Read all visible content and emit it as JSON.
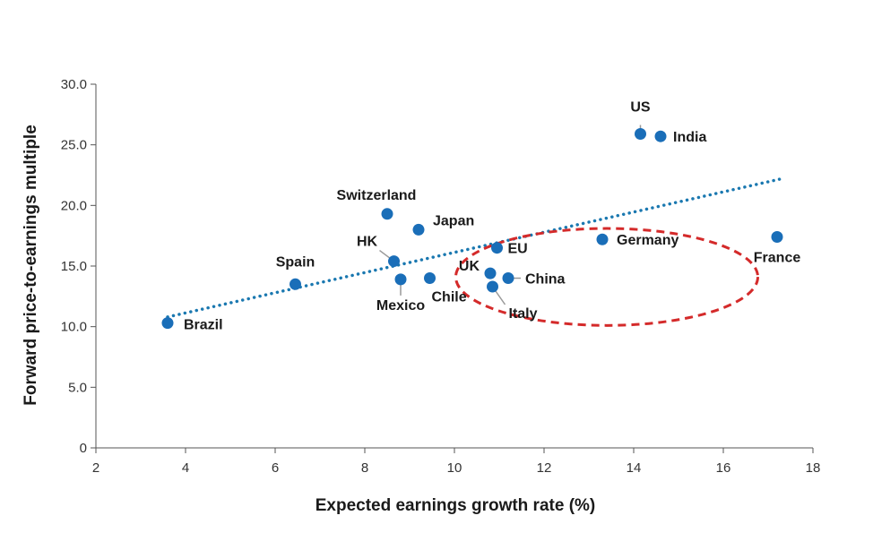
{
  "chart_data": {
    "type": "scatter",
    "title": "",
    "xlabel": "Expected earnings growth rate (%)",
    "ylabel": "Forward price-to-earnings multiple",
    "xlim": [
      2,
      18
    ],
    "ylim": [
      0,
      30
    ],
    "x_ticks": [
      "2",
      "4",
      "6",
      "8",
      "10",
      "12",
      "14",
      "16",
      "18"
    ],
    "y_ticks": [
      "0",
      "5.0",
      "10.0",
      "15.0",
      "20.0",
      "25.0",
      "30.0"
    ],
    "grid": false,
    "points": [
      {
        "label": "Brazil",
        "x": 3.6,
        "y": 10.3
      },
      {
        "label": "Spain",
        "x": 6.45,
        "y": 13.5
      },
      {
        "label": "Switzerland",
        "x": 8.5,
        "y": 19.3
      },
      {
        "label": "Japan",
        "x": 9.2,
        "y": 18.0
      },
      {
        "label": "HK",
        "x": 8.65,
        "y": 15.4
      },
      {
        "label": "Mexico",
        "x": 8.8,
        "y": 13.9
      },
      {
        "label": "Chile",
        "x": 9.45,
        "y": 14.0
      },
      {
        "label": "EU",
        "x": 10.95,
        "y": 16.5
      },
      {
        "label": "UK",
        "x": 10.8,
        "y": 14.4
      },
      {
        "label": "China",
        "x": 11.2,
        "y": 14.0
      },
      {
        "label": "Italy",
        "x": 10.85,
        "y": 13.3
      },
      {
        "label": "Germany",
        "x": 13.3,
        "y": 17.2
      },
      {
        "label": "France",
        "x": 17.2,
        "y": 17.4
      },
      {
        "label": "US",
        "x": 14.15,
        "y": 25.9
      },
      {
        "label": "India",
        "x": 14.6,
        "y": 25.7
      }
    ],
    "trendline": {
      "x": [
        3.6,
        17.3
      ],
      "y": [
        10.8,
        22.2
      ]
    },
    "highlight_ellipse": {
      "cx": 13.4,
      "cy": 14.1,
      "rx": 3.37,
      "ry": 4.0
    },
    "colors": {
      "point": "#1a6eb8",
      "trendline": "#1a78b0",
      "ellipse": "#d42a2a",
      "axis": "#555555",
      "leader": "#999999"
    }
  }
}
